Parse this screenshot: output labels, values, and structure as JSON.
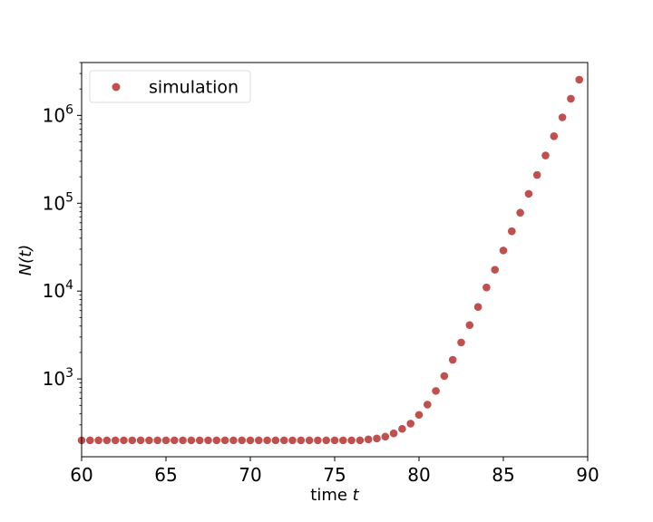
{
  "chart_data": {
    "type": "scatter",
    "title": "",
    "xlabel": "time",
    "xlabel_var": "t",
    "ylabel": "N(t)",
    "yscale": "log",
    "xlim": [
      60,
      90
    ],
    "ylim": [
      130,
      4000000
    ],
    "grid": false,
    "legend": {
      "placement": "top-left",
      "entries": [
        "simulation"
      ]
    },
    "colors": {
      "marker": "#c0504d",
      "axes": "#000000",
      "legend_border": "#dddddd"
    },
    "xticks": [
      60,
      65,
      70,
      75,
      80,
      85,
      90
    ],
    "xtick_labels": [
      "60",
      "65",
      "70",
      "75",
      "80",
      "85",
      "90"
    ],
    "yticks": [
      1000,
      10000,
      100000,
      1000000
    ],
    "ytick_labels": [
      {
        "base": "10",
        "exp": "3"
      },
      {
        "base": "10",
        "exp": "4"
      },
      {
        "base": "10",
        "exp": "5"
      },
      {
        "base": "10",
        "exp": "6"
      }
    ],
    "series": [
      {
        "name": "simulation",
        "x": [
          60.0,
          60.5,
          61.0,
          61.5,
          62.0,
          62.5,
          63.0,
          63.5,
          64.0,
          64.5,
          65.0,
          65.5,
          66.0,
          66.5,
          67.0,
          67.5,
          68.0,
          68.5,
          69.0,
          69.5,
          70.0,
          70.5,
          71.0,
          71.5,
          72.0,
          72.5,
          73.0,
          73.5,
          74.0,
          74.5,
          75.0,
          75.5,
          76.0,
          76.5,
          77.0,
          77.5,
          78.0,
          78.5,
          79.0,
          79.5,
          80.0,
          80.5,
          81.0,
          81.5,
          82.0,
          82.5,
          83.0,
          83.5,
          84.0,
          84.5,
          85.0,
          85.5,
          86.0,
          86.5,
          87.0,
          87.5,
          88.0,
          88.5,
          89.0,
          89.5
        ],
        "y": [
          200,
          200,
          200,
          200,
          200,
          200,
          200,
          200,
          200,
          200,
          200,
          200,
          200,
          200,
          200,
          200,
          200,
          200,
          200,
          200,
          200,
          200,
          200,
          200,
          200,
          200,
          200,
          200,
          200,
          200,
          200,
          200,
          200,
          200,
          205,
          210,
          220,
          240,
          270,
          310,
          390,
          510,
          730,
          1080,
          1650,
          2600,
          4100,
          6600,
          11000,
          17500,
          29000,
          48000,
          78000,
          128000,
          210000,
          350000,
          580000,
          950000,
          1550000,
          2550000
        ]
      }
    ]
  }
}
